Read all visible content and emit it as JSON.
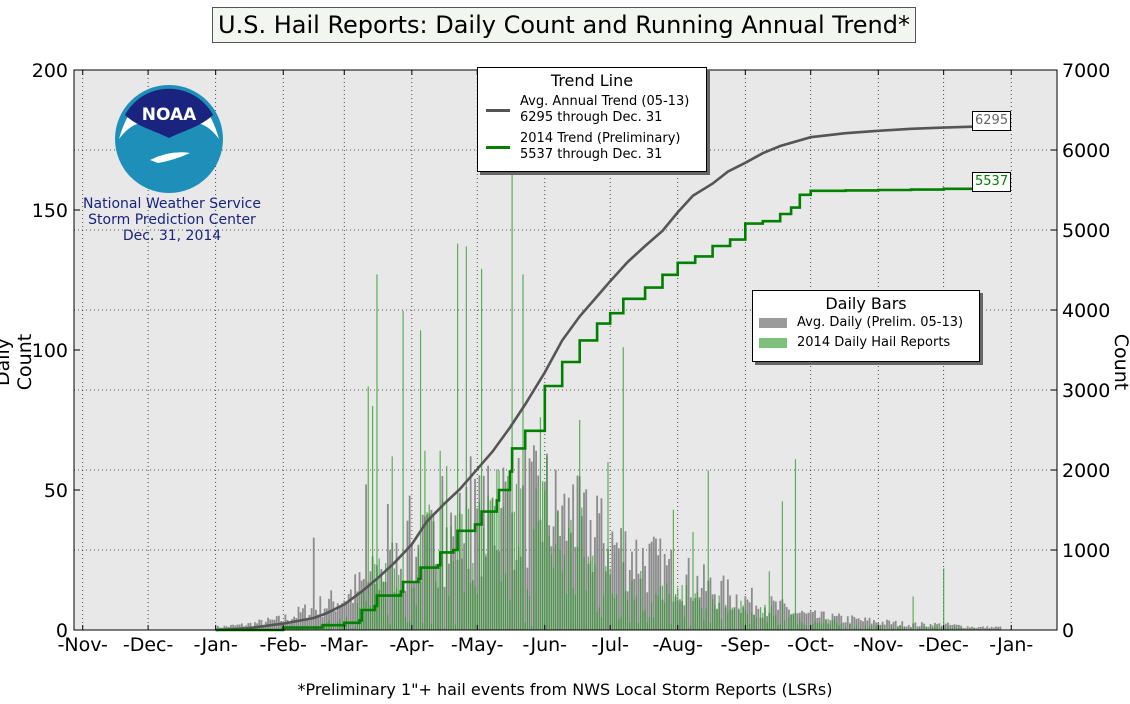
{
  "title": "U.S. Hail Reports: Daily Count and Running Annual Trend*",
  "footnote": "*Preliminary 1\"+ hail events from NWS Local Storm Reports (LSRs)",
  "left_axis_label": "Daily Count",
  "right_axis_label": "Annual Count",
  "logo": {
    "text": "NOAA",
    "org_line1": "National Weather Service",
    "org_line2": "Storm Prediction Center",
    "date": "Dec. 31, 2014"
  },
  "trend_legend": {
    "title": "Trend Line",
    "avg_line1": "Avg. Annual Trend (05-13)",
    "avg_line2": "6295 through Dec. 31",
    "y2014_line1": "2014 Trend (Preliminary)",
    "y2014_line2": "5537 through Dec. 31"
  },
  "bars_legend": {
    "title": "Daily Bars",
    "avg_label": "Avg. Daily (Prelim. 05-13)",
    "y2014_label": "2014 Daily Hail Reports"
  },
  "end_labels": {
    "avg": "6295",
    "y2014": "5537"
  },
  "colors": {
    "avg_line": "#555555",
    "trend_2014": "#008000",
    "avg_bar": "#8c8c8c",
    "bar_2014": "#2e9a2e",
    "plot_bg": "#e8e8e8",
    "logo_blue": "#1a237e"
  },
  "chart_data": {
    "type": "bar",
    "x_tick_labels": [
      "-Nov-",
      "-Dec-",
      "-Jan-",
      "-Feb-",
      "-Mar-",
      "-Apr-",
      "-May-",
      "-Jun-",
      "-Jul-",
      "-Aug-",
      "-Sep-",
      "-Oct-",
      "-Nov-",
      "-Dec-",
      "-Jan-"
    ],
    "x_tick_days": [
      0,
      30,
      61,
      92,
      120,
      151,
      181,
      212,
      242,
      273,
      304,
      334,
      365,
      395,
      426
    ],
    "xlim": [
      -4,
      447
    ],
    "ylim_left": [
      0,
      200
    ],
    "yticks_left": [
      0,
      50,
      100,
      150,
      200
    ],
    "ylim_right": [
      0,
      7000
    ],
    "yticks_right": [
      0,
      1000,
      2000,
      3000,
      4000,
      5000,
      6000,
      7000
    ],
    "grid": true,
    "avg_daily_profile": {
      "day": [
        61,
        75,
        92,
        106,
        120,
        135,
        151,
        166,
        181,
        196,
        205,
        212,
        228,
        242,
        258,
        273,
        289,
        304,
        320,
        334,
        350,
        365,
        380,
        395,
        410
      ],
      "value": [
        1,
        2,
        4,
        8,
        12,
        20,
        28,
        34,
        40,
        44,
        46,
        45,
        38,
        32,
        26,
        20,
        15,
        11,
        8,
        5,
        4,
        3,
        2,
        2,
        1
      ]
    },
    "daily_2014_profile": {
      "day": [
        61,
        92,
        110,
        120,
        135,
        151,
        166,
        181,
        196,
        212,
        228,
        242,
        258,
        273,
        289,
        304,
        320,
        334,
        350,
        365,
        380,
        395,
        410
      ],
      "value": [
        0,
        0.5,
        1,
        5,
        15,
        25,
        35,
        30,
        38,
        36,
        28,
        20,
        14,
        10,
        8,
        6,
        5,
        3,
        2,
        1,
        1,
        1,
        0.5
      ]
    },
    "spikes_2014": [
      {
        "day": 131,
        "value": 87
      },
      {
        "day": 133,
        "value": 80
      },
      {
        "day": 135,
        "value": 127
      },
      {
        "day": 142,
        "value": 62
      },
      {
        "day": 147,
        "value": 114
      },
      {
        "day": 155,
        "value": 107
      },
      {
        "day": 157,
        "value": 64
      },
      {
        "day": 164,
        "value": 64
      },
      {
        "day": 172,
        "value": 138
      },
      {
        "day": 176,
        "value": 137
      },
      {
        "day": 183,
        "value": 129
      },
      {
        "day": 191,
        "value": 57
      },
      {
        "day": 197,
        "value": 166
      },
      {
        "day": 202,
        "value": 127
      },
      {
        "day": 210,
        "value": 76
      },
      {
        "day": 213,
        "value": 62
      },
      {
        "day": 228,
        "value": 75
      },
      {
        "day": 241,
        "value": 60
      },
      {
        "day": 248,
        "value": 101
      },
      {
        "day": 271,
        "value": 43
      },
      {
        "day": 280,
        "value": 35
      },
      {
        "day": 287,
        "value": 57
      },
      {
        "day": 315,
        "value": 21
      },
      {
        "day": 321,
        "value": 46
      },
      {
        "day": 327,
        "value": 61
      },
      {
        "day": 381,
        "value": 12
      },
      {
        "day": 395,
        "value": 22
      }
    ],
    "spikes_avg": [
      {
        "day": 106,
        "value": 33
      },
      {
        "day": 130,
        "value": 52
      },
      {
        "day": 140,
        "value": 45
      },
      {
        "day": 150,
        "value": 48
      },
      {
        "day": 165,
        "value": 55
      },
      {
        "day": 178,
        "value": 62
      },
      {
        "day": 193,
        "value": 58
      },
      {
        "day": 203,
        "value": 68
      },
      {
        "day": 213,
        "value": 63
      },
      {
        "day": 225,
        "value": 52
      },
      {
        "day": 236,
        "value": 48
      }
    ],
    "series": [
      {
        "name": "Avg. Annual Trend (05-13)",
        "axis": "right",
        "day": [
          61,
          75,
          92,
          106,
          112,
          120,
          128,
          135,
          143,
          151,
          158,
          166,
          173,
          181,
          188,
          196,
          203,
          212,
          220,
          228,
          236,
          242,
          250,
          258,
          266,
          273,
          280,
          289,
          296,
          304,
          312,
          320,
          334,
          350,
          365,
          380,
          395,
          410,
          422
        ],
        "value": [
          0,
          20,
          80,
          150,
          210,
          320,
          480,
          640,
          840,
          1070,
          1360,
          1580,
          1760,
          2010,
          2230,
          2530,
          2820,
          3220,
          3620,
          3920,
          4170,
          4360,
          4600,
          4800,
          4990,
          5220,
          5430,
          5580,
          5730,
          5840,
          5960,
          6050,
          6160,
          6210,
          6240,
          6265,
          6280,
          6292,
          6295
        ]
      },
      {
        "name": "2014 Trend (Preliminary)",
        "axis": "right",
        "day": [
          61,
          92,
          110,
          120,
          127,
          128,
          134,
          135,
          146,
          147,
          154,
          155,
          163,
          164,
          170,
          172,
          180,
          183,
          190,
          191,
          196,
          197,
          203,
          212,
          220,
          228,
          236,
          242,
          248,
          258,
          266,
          273,
          281,
          289,
          297,
          304,
          312,
          320,
          325,
          329,
          334,
          350,
          365,
          380,
          395,
          410,
          422
        ],
        "value": [
          0,
          30,
          60,
          90,
          120,
          250,
          300,
          430,
          480,
          600,
          640,
          780,
          810,
          970,
          1000,
          1240,
          1320,
          1480,
          1620,
          1750,
          1980,
          2270,
          2490,
          3050,
          3350,
          3620,
          3830,
          3960,
          4140,
          4280,
          4440,
          4590,
          4670,
          4800,
          4880,
          5080,
          5110,
          5200,
          5280,
          5440,
          5490,
          5495,
          5500,
          5505,
          5515,
          5530,
          5537
        ]
      }
    ]
  }
}
